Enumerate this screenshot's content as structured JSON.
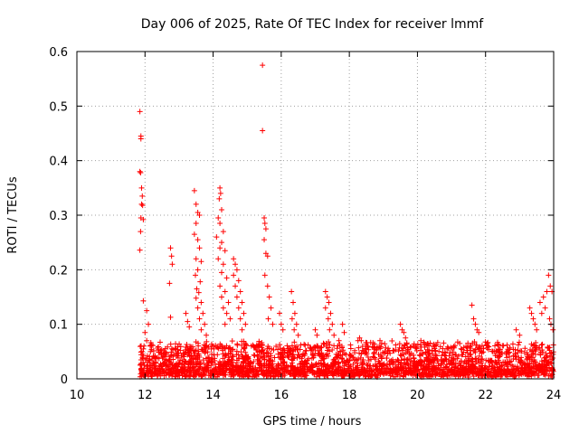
{
  "chart_data": {
    "type": "scatter",
    "title": "Day 006 of 2025, Rate Of TEC Index for receiver lmmf",
    "xlabel": "GPS time / hours",
    "ylabel": "ROTI / TECUs",
    "xlim": [
      10,
      24
    ],
    "ylim": [
      0,
      0.6
    ],
    "x_ticks": [
      "10",
      "12",
      "14",
      "16",
      "18",
      "20",
      "22",
      "24"
    ],
    "y_ticks": [
      "0",
      "0.1",
      "0.2",
      "0.3",
      "0.4",
      "0.5",
      "0.6"
    ],
    "grid": true,
    "marker": "plus",
    "marker_color": "#ff0000",
    "series": [
      {
        "points": [
          [
            11.85,
            0.49
          ],
          [
            11.88,
            0.445
          ],
          [
            11.88,
            0.44
          ],
          [
            11.85,
            0.38
          ],
          [
            11.87,
            0.378
          ],
          [
            11.9,
            0.35
          ],
          [
            11.92,
            0.335
          ],
          [
            11.9,
            0.32
          ],
          [
            11.93,
            0.318
          ],
          [
            11.88,
            0.295
          ],
          [
            11.95,
            0.292
          ],
          [
            11.87,
            0.27
          ],
          [
            11.85,
            0.236
          ],
          [
            11.95,
            0.143
          ],
          [
            12.05,
            0.125
          ],
          [
            12.1,
            0.1
          ],
          [
            12.0,
            0.085
          ],
          [
            11.97,
            0.06
          ],
          [
            12.05,
            0.07
          ],
          [
            12.75,
            0.24
          ],
          [
            12.78,
            0.225
          ],
          [
            12.8,
            0.21
          ],
          [
            12.72,
            0.175
          ],
          [
            12.75,
            0.113
          ],
          [
            13.2,
            0.12
          ],
          [
            13.25,
            0.105
          ],
          [
            13.3,
            0.095
          ],
          [
            13.45,
            0.345
          ],
          [
            13.5,
            0.32
          ],
          [
            13.55,
            0.305
          ],
          [
            13.6,
            0.3
          ],
          [
            13.5,
            0.285
          ],
          [
            13.45,
            0.265
          ],
          [
            13.55,
            0.255
          ],
          [
            13.6,
            0.24
          ],
          [
            13.5,
            0.22
          ],
          [
            13.65,
            0.215
          ],
          [
            13.55,
            0.2
          ],
          [
            13.48,
            0.19
          ],
          [
            13.62,
            0.178
          ],
          [
            13.52,
            0.165
          ],
          [
            13.58,
            0.158
          ],
          [
            13.5,
            0.148
          ],
          [
            13.65,
            0.14
          ],
          [
            13.55,
            0.13
          ],
          [
            13.7,
            0.12
          ],
          [
            13.6,
            0.11
          ],
          [
            13.75,
            0.1
          ],
          [
            13.65,
            0.09
          ],
          [
            13.8,
            0.08
          ],
          [
            14.2,
            0.35
          ],
          [
            14.22,
            0.34
          ],
          [
            14.18,
            0.33
          ],
          [
            14.25,
            0.31
          ],
          [
            14.15,
            0.295
          ],
          [
            14.2,
            0.285
          ],
          [
            14.3,
            0.27
          ],
          [
            14.1,
            0.26
          ],
          [
            14.25,
            0.25
          ],
          [
            14.2,
            0.24
          ],
          [
            14.35,
            0.235
          ],
          [
            14.15,
            0.22
          ],
          [
            14.3,
            0.21
          ],
          [
            14.25,
            0.195
          ],
          [
            14.4,
            0.185
          ],
          [
            14.2,
            0.17
          ],
          [
            14.35,
            0.16
          ],
          [
            14.25,
            0.15
          ],
          [
            14.45,
            0.14
          ],
          [
            14.3,
            0.13
          ],
          [
            14.4,
            0.12
          ],
          [
            14.5,
            0.11
          ],
          [
            14.35,
            0.1
          ],
          [
            14.6,
            0.22
          ],
          [
            14.65,
            0.21
          ],
          [
            14.7,
            0.2
          ],
          [
            14.6,
            0.19
          ],
          [
            14.75,
            0.18
          ],
          [
            14.65,
            0.17
          ],
          [
            14.8,
            0.16
          ],
          [
            14.7,
            0.15
          ],
          [
            14.85,
            0.14
          ],
          [
            14.75,
            0.13
          ],
          [
            14.9,
            0.12
          ],
          [
            14.8,
            0.11
          ],
          [
            14.95,
            0.1
          ],
          [
            14.85,
            0.09
          ],
          [
            15.45,
            0.575
          ],
          [
            15.45,
            0.455
          ],
          [
            15.5,
            0.295
          ],
          [
            15.52,
            0.285
          ],
          [
            15.55,
            0.275
          ],
          [
            15.5,
            0.255
          ],
          [
            15.55,
            0.23
          ],
          [
            15.6,
            0.225
          ],
          [
            15.52,
            0.19
          ],
          [
            15.6,
            0.17
          ],
          [
            15.65,
            0.15
          ],
          [
            15.7,
            0.13
          ],
          [
            15.62,
            0.11
          ],
          [
            15.75,
            0.1
          ],
          [
            15.95,
            0.12
          ],
          [
            16.0,
            0.1
          ],
          [
            16.05,
            0.09
          ],
          [
            16.3,
            0.16
          ],
          [
            16.35,
            0.14
          ],
          [
            16.4,
            0.12
          ],
          [
            16.32,
            0.11
          ],
          [
            16.45,
            0.1
          ],
          [
            16.38,
            0.09
          ],
          [
            16.5,
            0.08
          ],
          [
            17.0,
            0.09
          ],
          [
            17.05,
            0.08
          ],
          [
            17.3,
            0.16
          ],
          [
            17.35,
            0.15
          ],
          [
            17.4,
            0.14
          ],
          [
            17.3,
            0.13
          ],
          [
            17.45,
            0.12
          ],
          [
            17.38,
            0.11
          ],
          [
            17.5,
            0.1
          ],
          [
            17.42,
            0.09
          ],
          [
            17.55,
            0.08
          ],
          [
            17.8,
            0.1
          ],
          [
            17.85,
            0.085
          ],
          [
            18.3,
            0.075
          ],
          [
            18.35,
            0.07
          ],
          [
            18.9,
            0.07
          ],
          [
            18.95,
            0.065
          ],
          [
            19.5,
            0.1
          ],
          [
            19.55,
            0.09
          ],
          [
            19.6,
            0.085
          ],
          [
            19.65,
            0.075
          ],
          [
            20.1,
            0.07
          ],
          [
            20.2,
            0.065
          ],
          [
            21.6,
            0.135
          ],
          [
            21.65,
            0.11
          ],
          [
            21.7,
            0.1
          ],
          [
            21.75,
            0.09
          ],
          [
            21.8,
            0.085
          ],
          [
            22.9,
            0.09
          ],
          [
            23.0,
            0.08
          ],
          [
            23.3,
            0.13
          ],
          [
            23.35,
            0.12
          ],
          [
            23.4,
            0.11
          ],
          [
            23.45,
            0.1
          ],
          [
            23.5,
            0.09
          ],
          [
            23.6,
            0.14
          ],
          [
            23.7,
            0.15
          ],
          [
            23.8,
            0.16
          ],
          [
            23.85,
            0.19
          ],
          [
            23.9,
            0.17
          ],
          [
            23.95,
            0.16
          ],
          [
            23.75,
            0.13
          ],
          [
            23.65,
            0.12
          ],
          [
            23.88,
            0.11
          ],
          [
            23.92,
            0.1
          ],
          [
            23.98,
            0.09
          ]
        ]
      }
    ],
    "background_band": {
      "x_start": 11.85,
      "x_end": 24.0,
      "y_min": 0.003,
      "y_max": 0.06,
      "note": "dense cloud of low ROTI values"
    }
  }
}
